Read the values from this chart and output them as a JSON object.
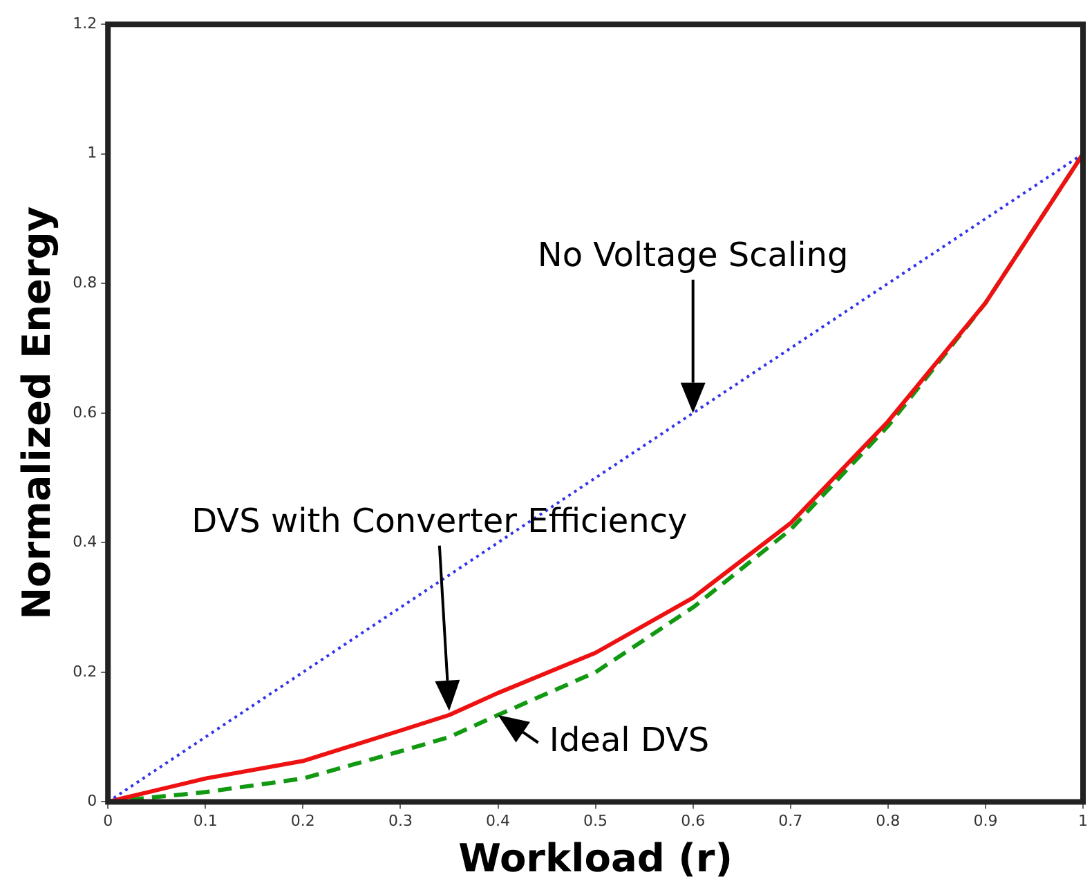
{
  "chart_data": {
    "type": "line",
    "xlabel": "Workload (r)",
    "ylabel": "Normalized Energy",
    "x": [
      0,
      0.1,
      0.2,
      0.3,
      0.35,
      0.4,
      0.5,
      0.6,
      0.7,
      0.8,
      0.9,
      1
    ],
    "xlim": [
      0,
      1
    ],
    "xticks": [
      0,
      0.1,
      0.2,
      0.3,
      0.4,
      0.5,
      0.6,
      0.7,
      0.8,
      0.9,
      1
    ],
    "ylim": [
      0,
      1.2
    ],
    "yticks": [
      0,
      0.2,
      0.4,
      0.6,
      0.8,
      1,
      1.2
    ],
    "grid": false,
    "legend": false,
    "marker": "none",
    "series": [
      {
        "color": "#3333ee",
        "line_style": "dotted",
        "values": [
          0,
          0.1,
          0.2,
          0.3,
          0.35,
          0.4,
          0.5,
          0.6,
          0.7,
          0.8,
          0.9,
          1
        ]
      },
      {
        "color": "#ee1111",
        "line_style": "solid",
        "values": [
          0,
          0.036,
          0.063,
          0.11,
          0.134,
          0.168,
          0.23,
          0.315,
          0.43,
          0.587,
          0.77,
          1
        ]
      },
      {
        "color": "#119911",
        "line_style": "dashed",
        "values": [
          0,
          0.015,
          0.036,
          0.078,
          0.1,
          0.134,
          0.2,
          0.3,
          0.42,
          0.58,
          0.77,
          1
        ]
      }
    ],
    "annotations": [
      "No Voltage Scaling",
      "DVS with Converter Efficiency",
      {
        "text": "Ideal DVS",
        "x": 0.4,
        "y": 0.134
      }
    ]
  }
}
